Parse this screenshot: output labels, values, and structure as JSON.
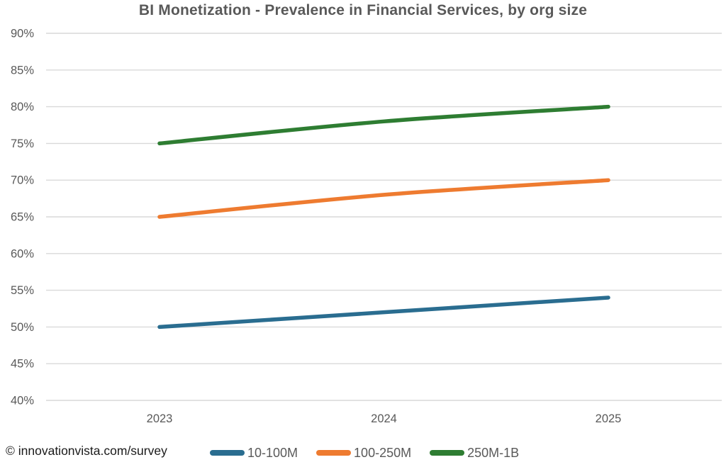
{
  "title": "BI Monetization - Prevalence in Financial Services, by org size",
  "source": "© innovationvista.com/survey",
  "chart_data": {
    "type": "line",
    "title": "BI Monetization - Prevalence in Financial Services, by org size",
    "categories": [
      "2023",
      "2024",
      "2025"
    ],
    "series": [
      {
        "name": "10-100M",
        "color": "#2a6d90",
        "values": [
          50,
          52,
          54
        ]
      },
      {
        "name": "100-250M",
        "color": "#ee7b30",
        "values": [
          65,
          68,
          70
        ]
      },
      {
        "name": "250M-1B",
        "color": "#2e7d32",
        "values": [
          75,
          78,
          80
        ]
      }
    ],
    "ylim": [
      40,
      90
    ],
    "ytick_step": 5,
    "ytick_suffix": "%",
    "ytick_labels": [
      "40%",
      "45%",
      "50%",
      "55%",
      "60%",
      "65%",
      "70%",
      "75%",
      "80%",
      "85%",
      "90%"
    ],
    "grid": true,
    "legend_position": "bottom",
    "smoothed": true,
    "source": "© innovationvista.com/survey"
  },
  "colors": {
    "title_text": "#595959",
    "axis_labels": "#595959",
    "gridline": "#d9d9d9",
    "source_text": "#1a1a1a",
    "background": "#ffffff"
  }
}
